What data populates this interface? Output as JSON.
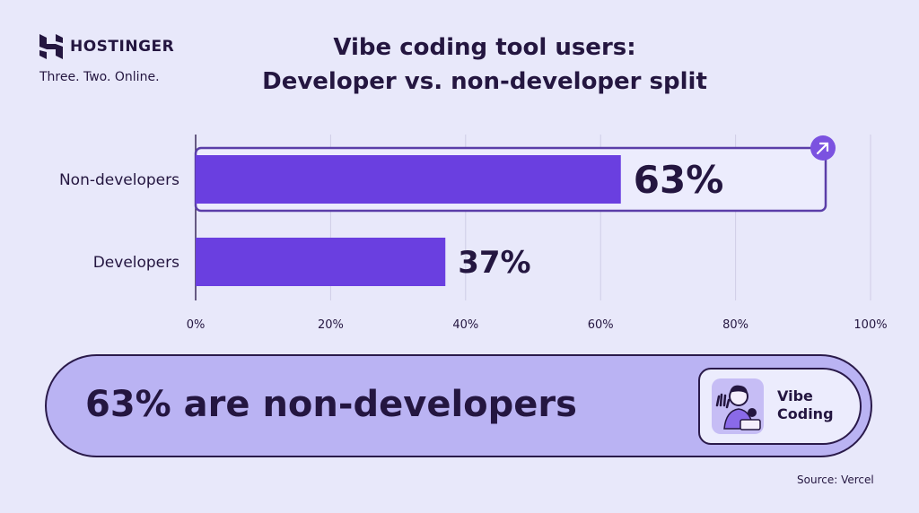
{
  "brand": {
    "name": "HOSTINGER",
    "tagline": "Three. Two. Online."
  },
  "colors": {
    "background": "#e8e8fa",
    "bar": "#6a3fe0",
    "highlight_border": "#5b3ea8",
    "pill": "#bab3f3",
    "text": "#241640"
  },
  "chart_data": {
    "type": "bar",
    "orientation": "horizontal",
    "title": "Vibe coding tool users:\nDeveloper vs. non-developer split",
    "title_lines": [
      "Vibe coding tool users:",
      "Developer vs. non-developer split"
    ],
    "categories": [
      "Non-developers",
      "Developers"
    ],
    "values": [
      63,
      37
    ],
    "data_labels": [
      "63%",
      "37%"
    ],
    "xlim": [
      0,
      100
    ],
    "x_ticks": [
      "0%",
      "20%",
      "40%",
      "60%",
      "80%",
      "100%"
    ],
    "grid": true,
    "highlight": "Non-developers",
    "highlight_icon": "arrow-up-right-icon"
  },
  "callout": {
    "text": "63% are non-developers",
    "badge_label_1": "Vibe",
    "badge_label_2": "Coding",
    "badge_icon": "person-waving-keyboard-gear-icon"
  },
  "source": "Source: Vercel"
}
